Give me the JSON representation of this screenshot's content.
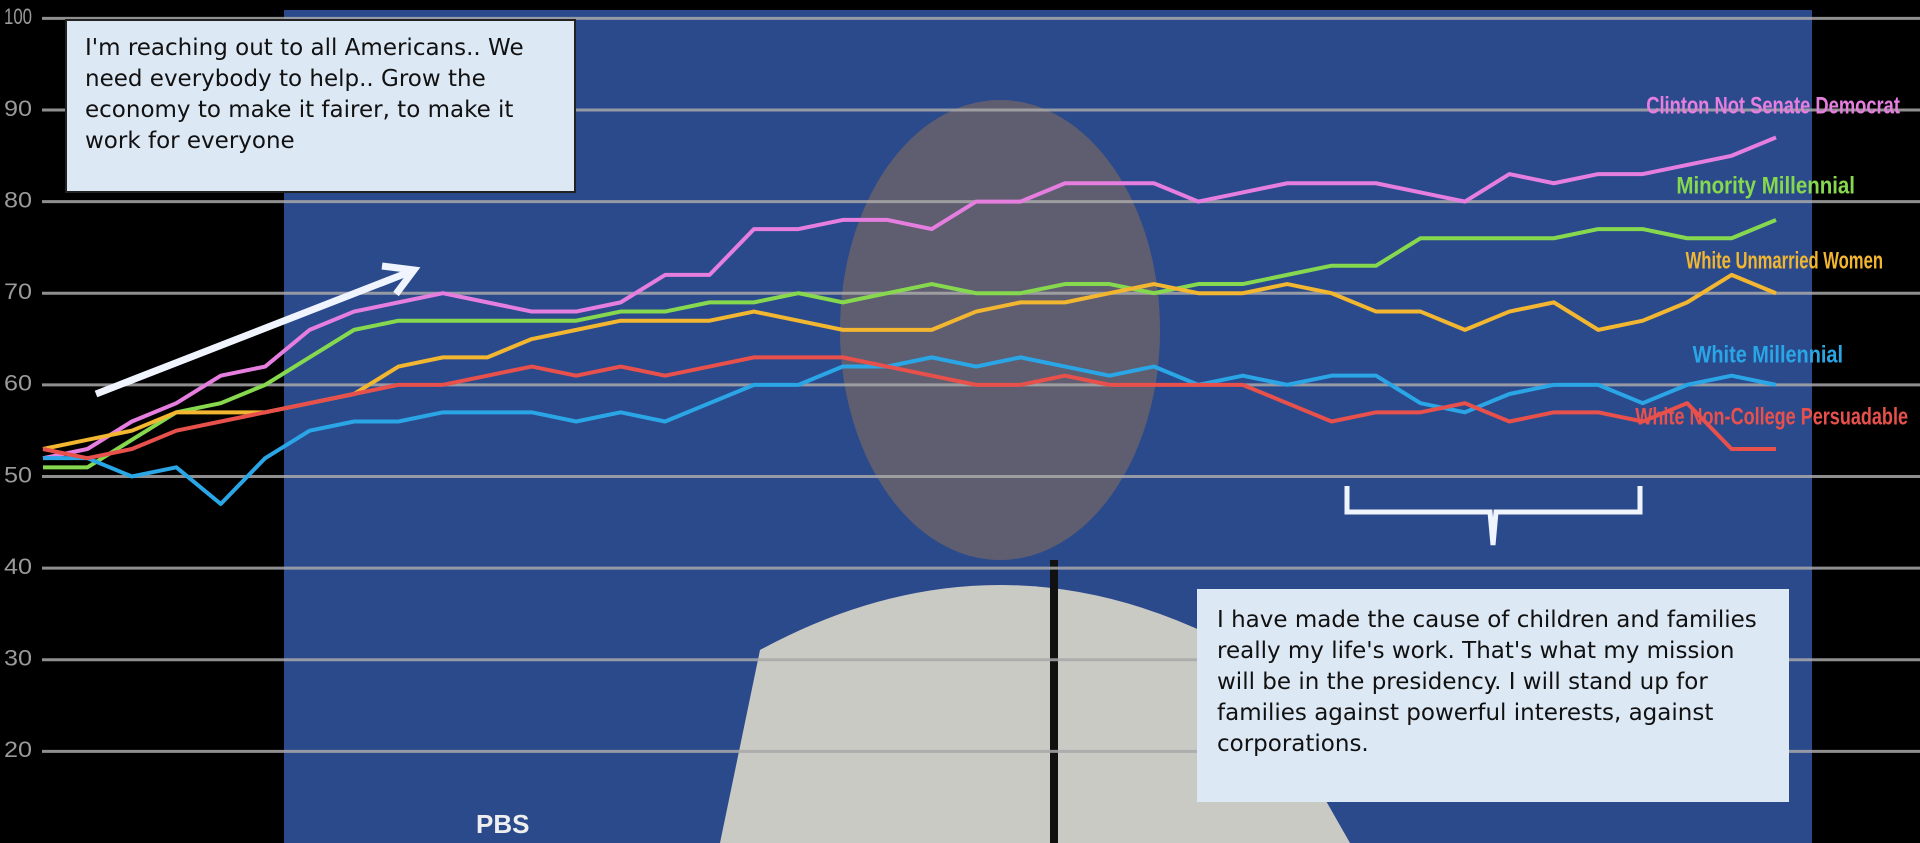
{
  "chart_data": {
    "type": "line",
    "categories": [
      null,
      null,
      null,
      null,
      null,
      null,
      null,
      null,
      null,
      null,
      null,
      null,
      null,
      null,
      null,
      null,
      null,
      null,
      null,
      null,
      null,
      null,
      null,
      null,
      null,
      null,
      null,
      null,
      null,
      null,
      null,
      null,
      null,
      null,
      null,
      null,
      null,
      null,
      null,
      null
    ],
    "series": [
      {
        "name": "Clinton Not Senate Democrat",
        "color": "#e67ee0",
        "values": [
          52,
          53,
          56,
          58,
          61,
          62,
          66,
          68,
          69,
          70,
          69,
          68,
          68,
          69,
          72,
          72,
          77,
          77,
          78,
          78,
          77,
          80,
          80,
          82,
          82,
          82,
          80,
          81,
          82,
          82,
          82,
          81,
          80,
          83,
          82,
          83,
          83,
          84,
          85,
          87
        ]
      },
      {
        "name": "Minority Millennial",
        "color": "#86d94e",
        "values": [
          51,
          51,
          54,
          57,
          58,
          60,
          63,
          66,
          67,
          67,
          67,
          67,
          67,
          68,
          68,
          69,
          69,
          70,
          69,
          70,
          71,
          70,
          70,
          71,
          71,
          70,
          71,
          71,
          72,
          73,
          73,
          76,
          76,
          76,
          76,
          77,
          77,
          76,
          76,
          78
        ]
      },
      {
        "name": "White Unmarried Women",
        "color": "#f2b630",
        "values": [
          53,
          54,
          55,
          57,
          57,
          57,
          58,
          59,
          62,
          63,
          63,
          65,
          66,
          67,
          67,
          67,
          68,
          67,
          66,
          66,
          66,
          68,
          69,
          69,
          70,
          71,
          70,
          70,
          71,
          70,
          68,
          68,
          66,
          68,
          69,
          66,
          67,
          69,
          72,
          70
        ]
      },
      {
        "name": "White Millennial",
        "color": "#2aa6e6",
        "values": [
          52,
          52,
          50,
          51,
          47,
          52,
          55,
          56,
          56,
          57,
          57,
          57,
          56,
          57,
          56,
          58,
          60,
          60,
          62,
          62,
          63,
          62,
          63,
          62,
          61,
          62,
          60,
          61,
          60,
          61,
          61,
          58,
          57,
          59,
          60,
          60,
          58,
          60,
          61,
          60
        ]
      },
      {
        "name": "White Non-College Persuadable",
        "color": "#e8504c",
        "values": [
          53,
          52,
          53,
          55,
          56,
          57,
          58,
          59,
          60,
          60,
          61,
          62,
          61,
          62,
          61,
          62,
          63,
          63,
          63,
          62,
          61,
          60,
          60,
          61,
          60,
          60,
          60,
          60,
          58,
          56,
          57,
          57,
          58,
          56,
          57,
          57,
          56,
          58,
          53,
          53
        ]
      }
    ],
    "ylim": [
      10,
      102
    ],
    "yticks": [
      20,
      30,
      40,
      50,
      60,
      70,
      80,
      90,
      100
    ],
    "grid": true,
    "annotations": [
      "I'm reaching out to all Americans.. We need everybody to help.. Grow the economy to make it fairer, to make it work for everyone",
      "I have made the cause of children and families really my life's work. That's what my mission will be in the presidency. I will stand up for families against powerful interests, against corporations."
    ],
    "watermark": "PBS"
  }
}
